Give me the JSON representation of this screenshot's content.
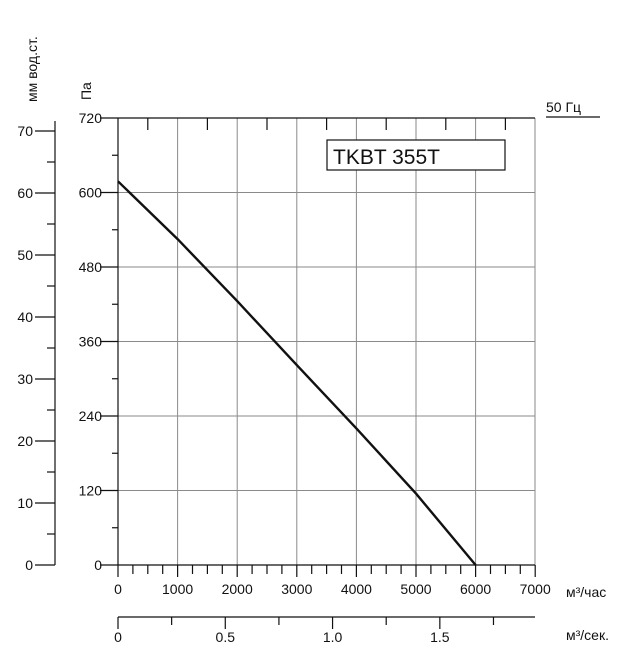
{
  "chart_data": {
    "type": "line",
    "title": "",
    "model_label": "TKBT 355T",
    "frequency_label": "50 Гц",
    "axis_unit_mm": "мм вод.ст.",
    "axis_unit_pa": "Па",
    "x_unit_m3h": "м³/час",
    "x_unit_m3s": "м³/сек.",
    "x_m3h_ticks": [
      "0",
      "1000",
      "2000",
      "3000",
      "4000",
      "5000",
      "6000",
      "7000"
    ],
    "x_m3s_ticks": [
      "0",
      "0.5",
      "1.0",
      "1.5"
    ],
    "y_pa_ticks": [
      "0",
      "120",
      "240",
      "360",
      "480",
      "600",
      "720"
    ],
    "y_mm_ticks": [
      "0",
      "10",
      "20",
      "30",
      "40",
      "50",
      "60",
      "70"
    ],
    "xlim": [
      0,
      7000
    ],
    "ylim": [
      0,
      720
    ],
    "grid": true,
    "series": [
      {
        "x": [
          0,
          1000,
          2000,
          3000,
          4000,
          5000,
          6000
        ],
        "y": [
          618,
          525,
          425,
          322,
          220,
          115,
          0
        ]
      }
    ]
  }
}
